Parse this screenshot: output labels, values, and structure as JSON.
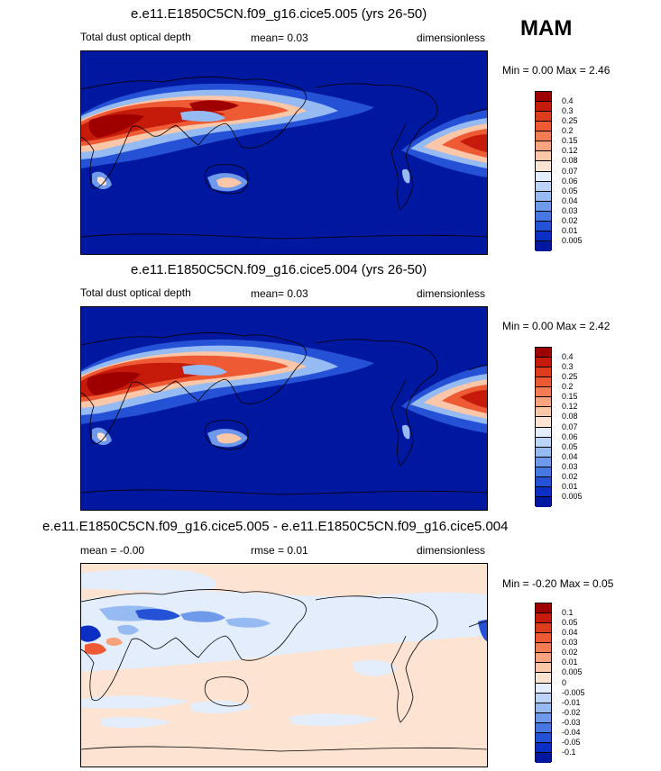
{
  "season": "MAM",
  "panels": [
    {
      "title": "e.e11.E1850C5CN.f09_g16.cice5.005 (yrs 26-50)",
      "left": "Total dust optical depth",
      "mean": "mean=   0.03",
      "units": "dimensionless",
      "minmax": "Min =   0.00 Max =   2.46",
      "scale": "absolute"
    },
    {
      "title": "e.e11.E1850C5CN.f09_g16.cice5.004 (yrs 26-50)",
      "left": "Total dust optical depth",
      "mean": "mean=   0.03",
      "units": "dimensionless",
      "minmax": "Min =   0.00 Max =   2.42",
      "scale": "absolute"
    },
    {
      "title": "e.e11.E1850C5CN.f09_g16.cice5.005 - e.e11.E1850C5CN.f09_g16.cice5.004",
      "left": "mean =  -0.00",
      "mean": "rmse =   0.01",
      "units": "dimensionless",
      "minmax": "Min =  -0.20 Max =   0.05",
      "scale": "difference"
    }
  ],
  "colorbars": {
    "absolute": {
      "labels": [
        "0.4",
        "0.3",
        "0.25",
        "0.2",
        "0.15",
        "0.12",
        "0.08",
        "0.07",
        "0.06",
        "0.05",
        "0.04",
        "0.03",
        "0.02",
        "0.01",
        "0.005"
      ],
      "colors": [
        "#9e0000",
        "#c61b0b",
        "#dd3d1c",
        "#ee5a34",
        "#f47c55",
        "#f9a27e",
        "#fcc7a8",
        "#fde4d2",
        "#e3edfb",
        "#bcd4f7",
        "#96baf2",
        "#6f9aec",
        "#4777e3",
        "#2451d6",
        "#0b2ec4",
        "#00179f"
      ]
    },
    "difference": {
      "labels": [
        "0.1",
        "0.05",
        "0.04",
        "0.03",
        "0.02",
        "0.01",
        "0.005",
        "0",
        "-0.005",
        "-0.01",
        "-0.02",
        "-0.03",
        "-0.04",
        "-0.05",
        "-0.1"
      ],
      "colors": [
        "#9e0000",
        "#c61b0b",
        "#dd3d1c",
        "#ee5a34",
        "#f47c55",
        "#f9a27e",
        "#fcc7a8",
        "#fde4d2",
        "#e3edfb",
        "#bcd4f7",
        "#96baf2",
        "#6f9aec",
        "#4777e3",
        "#2451d6",
        "#0b2ec4",
        "#00179f"
      ]
    }
  },
  "chart_data": [
    {
      "type": "heatmap",
      "title": "e.e11.E1850C5CN.f09_g16.cice5.005 (yrs 26-50)",
      "variable": "Total dust optical depth",
      "season": "MAM",
      "mean": 0.03,
      "min": 0.0,
      "max": 2.46,
      "units": "dimensionless",
      "contour_levels": [
        0.005,
        0.01,
        0.02,
        0.03,
        0.04,
        0.05,
        0.06,
        0.07,
        0.08,
        0.12,
        0.15,
        0.2,
        0.25,
        0.3,
        0.4
      ]
    },
    {
      "type": "heatmap",
      "title": "e.e11.E1850C5CN.f09_g16.cice5.004 (yrs 26-50)",
      "variable": "Total dust optical depth",
      "season": "MAM",
      "mean": 0.03,
      "min": 0.0,
      "max": 2.42,
      "units": "dimensionless",
      "contour_levels": [
        0.005,
        0.01,
        0.02,
        0.03,
        0.04,
        0.05,
        0.06,
        0.07,
        0.08,
        0.12,
        0.15,
        0.2,
        0.25,
        0.3,
        0.4
      ]
    },
    {
      "type": "heatmap",
      "title": "e.e11.E1850C5CN.f09_g16.cice5.005 - e.e11.E1850C5CN.f09_g16.cice5.004",
      "mean": -0.0,
      "rmse": 0.01,
      "min": -0.2,
      "max": 0.05,
      "units": "dimensionless",
      "contour_levels": [
        -0.1,
        -0.05,
        -0.04,
        -0.03,
        -0.02,
        -0.01,
        -0.005,
        0,
        0.005,
        0.01,
        0.02,
        0.03,
        0.04,
        0.05,
        0.1
      ]
    }
  ]
}
